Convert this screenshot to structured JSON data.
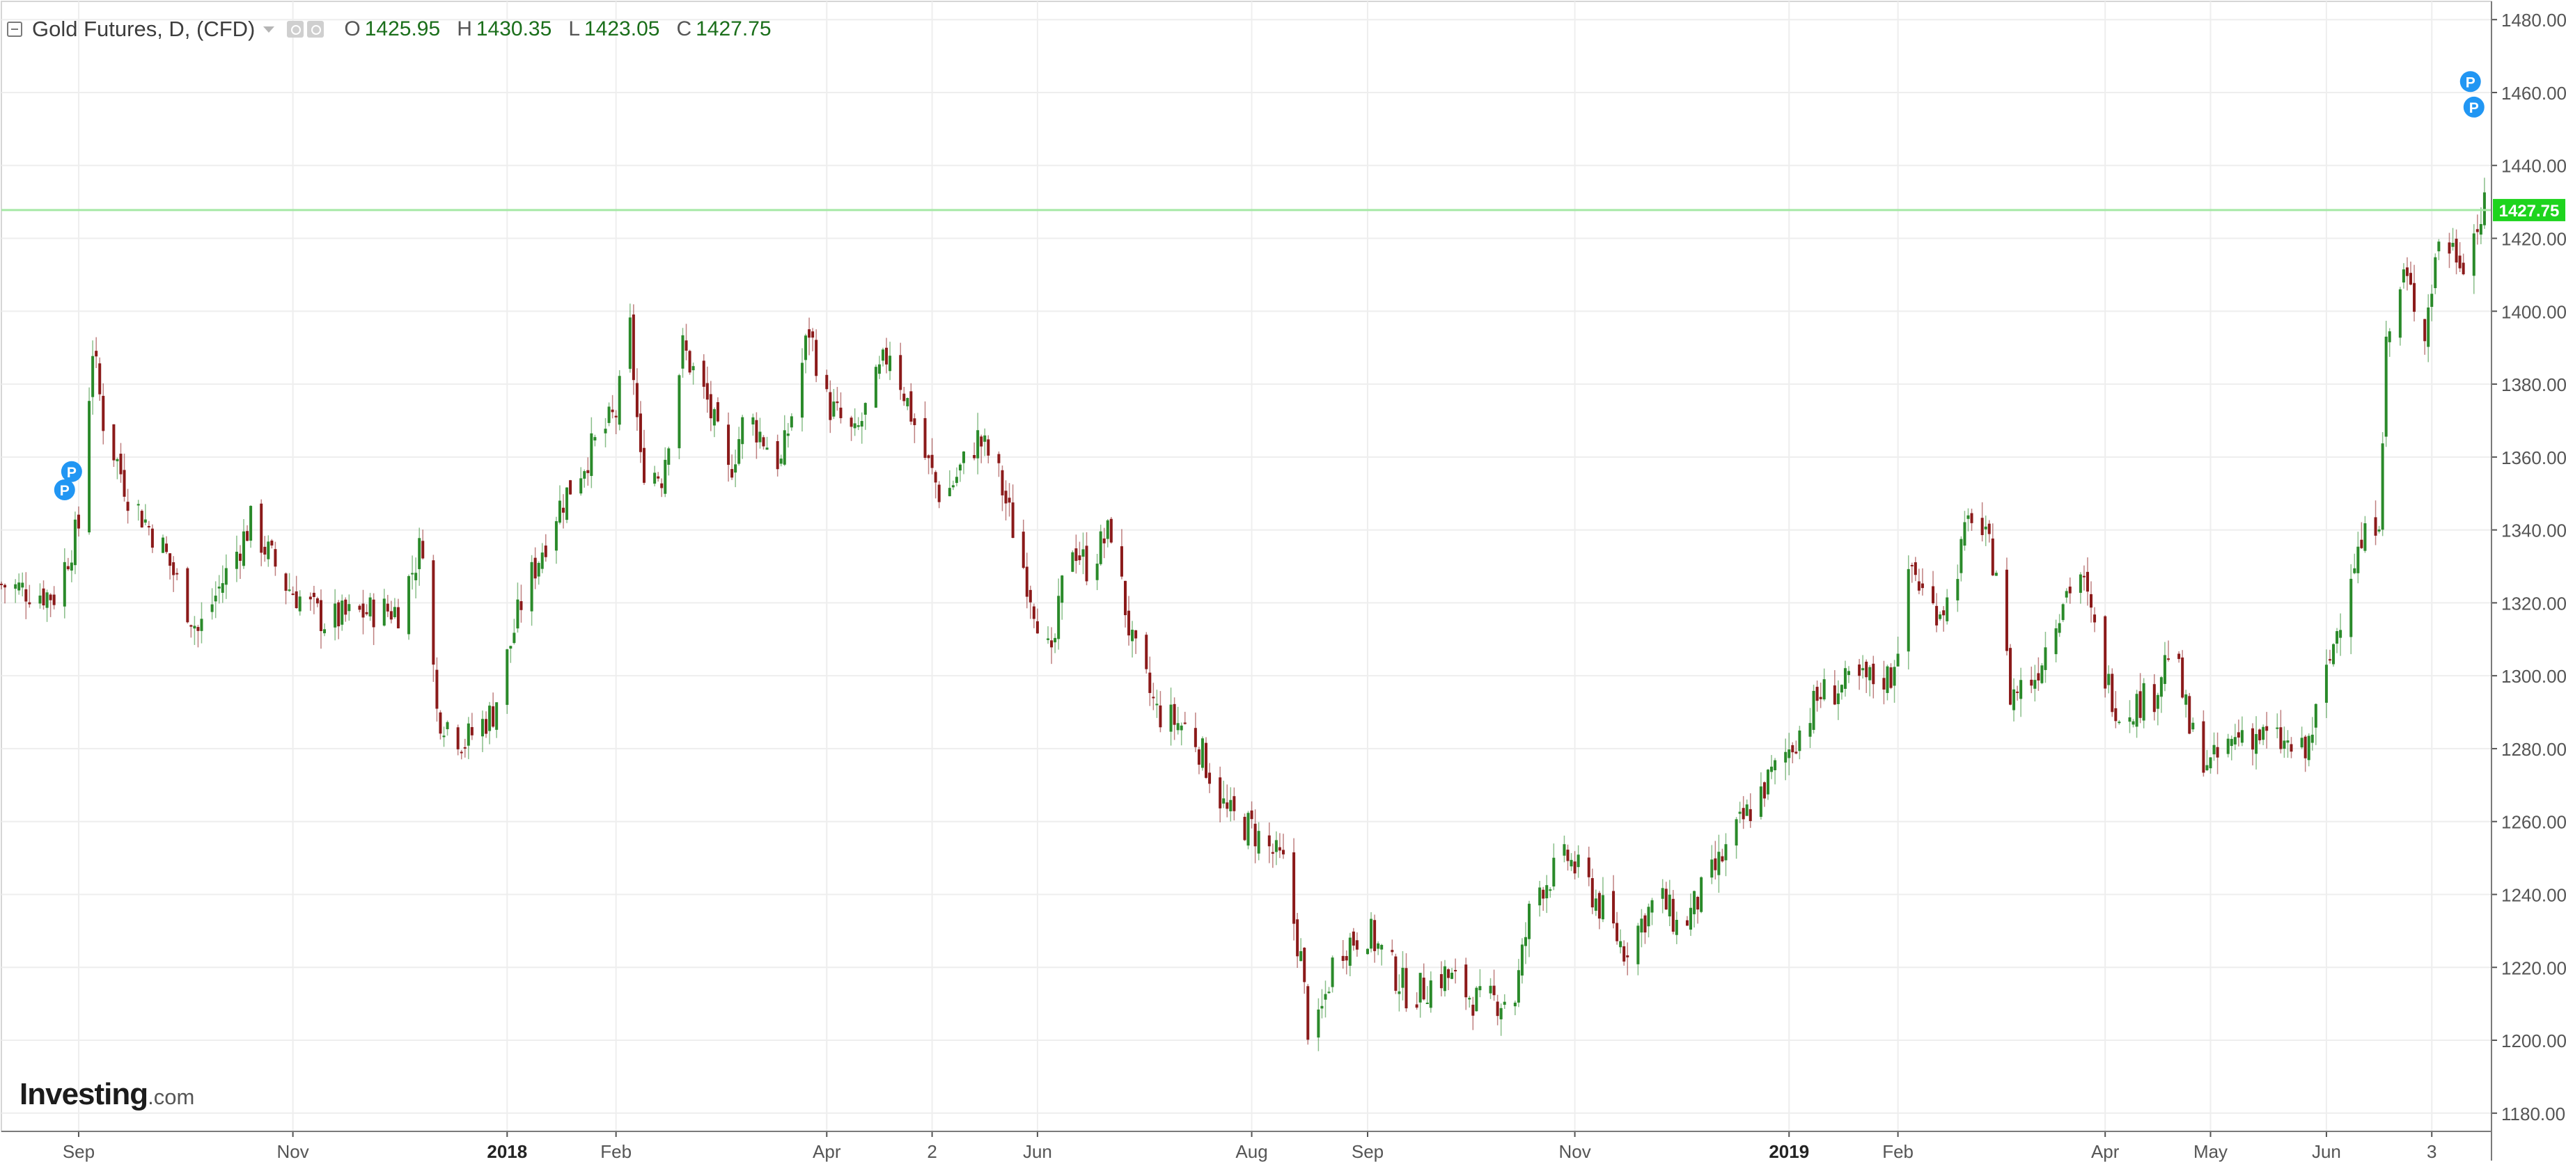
{
  "legend": {
    "title": "Gold Futures, D, (CFD)",
    "o_label": "O",
    "o_value": "1425.95",
    "h_label": "H",
    "h_value": "1430.35",
    "l_label": "L",
    "l_value": "1423.05",
    "c_label": "C",
    "c_value": "1427.75"
  },
  "brand": {
    "name": "Investing",
    "domain": ".com"
  },
  "price_tag": "1427.75",
  "markers": [
    "P",
    "P",
    "P",
    "P"
  ],
  "colors": {
    "up": "#2a8a2a",
    "down": "#8b1a1a",
    "price_line": "#a6e8a6",
    "price_tag": "#1ed41e",
    "marker": "#2196f3",
    "grid": "#eeeeee"
  },
  "chart_data": {
    "type": "candlestick",
    "grid": true,
    "yaxis_position": "right",
    "ylim": [
      1175,
      1485
    ],
    "yticks": [
      "1180.00",
      "1200.00",
      "1220.00",
      "1240.00",
      "1260.00",
      "1280.00",
      "1300.00",
      "1320.00",
      "1340.00",
      "1360.00",
      "1380.00",
      "1400.00",
      "1420.00",
      "1440.00",
      "1460.00",
      "1480.00"
    ],
    "xticks": [
      {
        "label": "Sep",
        "date": "2017-09-01"
      },
      {
        "label": "Nov",
        "date": "2017-11-01"
      },
      {
        "label": "2018",
        "date": "2018-01-01"
      },
      {
        "label": "Feb",
        "date": "2018-02-01"
      },
      {
        "label": "Apr",
        "date": "2018-04-02"
      },
      {
        "label": "2",
        "date": "2018-05-02"
      },
      {
        "label": "Jun",
        "date": "2018-06-01"
      },
      {
        "label": "Aug",
        "date": "2018-08-01"
      },
      {
        "label": "Sep",
        "date": "2018-09-03"
      },
      {
        "label": "Nov",
        "date": "2018-11-01"
      },
      {
        "label": "2019",
        "date": "2019-01-01"
      },
      {
        "label": "Feb",
        "date": "2019-02-01"
      },
      {
        "label": "Apr",
        "date": "2019-04-01"
      },
      {
        "label": "May",
        "date": "2019-05-01"
      },
      {
        "label": "Jun",
        "date": "2019-06-03"
      },
      {
        "label": "3",
        "date": "2019-07-03"
      }
    ],
    "xlim": [
      "2017-08-10",
      "2019-07-20"
    ],
    "last_price": 1427.75,
    "close_path": [
      [
        "2017-08-10",
        1325
      ],
      [
        "2017-08-25",
        1322
      ],
      [
        "2017-09-01",
        1341
      ],
      [
        "2017-09-05",
        1390
      ],
      [
        "2017-09-08",
        1370
      ],
      [
        "2017-09-15",
        1350
      ],
      [
        "2017-09-25",
        1335
      ],
      [
        "2017-10-05",
        1312
      ],
      [
        "2017-10-20",
        1342
      ],
      [
        "2017-10-30",
        1325
      ],
      [
        "2017-11-10",
        1315
      ],
      [
        "2017-11-25",
        1318
      ],
      [
        "2017-12-01",
        1318
      ],
      [
        "2017-12-08",
        1337
      ],
      [
        "2017-12-12",
        1290
      ],
      [
        "2017-12-20",
        1282
      ],
      [
        "2017-12-28",
        1290
      ],
      [
        "2018-01-05",
        1320
      ],
      [
        "2018-01-15",
        1345
      ],
      [
        "2018-01-25",
        1362
      ],
      [
        "2018-02-01",
        1372
      ],
      [
        "2018-02-05",
        1395
      ],
      [
        "2018-02-08",
        1358
      ],
      [
        "2018-02-14",
        1355
      ],
      [
        "2018-02-20",
        1390
      ],
      [
        "2018-02-27",
        1375
      ],
      [
        "2018-03-05",
        1355
      ],
      [
        "2018-03-10",
        1372
      ],
      [
        "2018-03-20",
        1358
      ],
      [
        "2018-03-28",
        1395
      ],
      [
        "2018-04-02",
        1375
      ],
      [
        "2018-04-10",
        1365
      ],
      [
        "2018-04-20",
        1390
      ],
      [
        "2018-04-30",
        1360
      ],
      [
        "2018-05-05",
        1348
      ],
      [
        "2018-05-15",
        1365
      ],
      [
        "2018-05-20",
        1358
      ],
      [
        "2018-05-28",
        1330
      ],
      [
        "2018-06-05",
        1303
      ],
      [
        "2018-06-10",
        1338
      ],
      [
        "2018-06-15",
        1330
      ],
      [
        "2018-06-22",
        1340
      ],
      [
        "2018-06-28",
        1308
      ],
      [
        "2018-07-05",
        1290
      ],
      [
        "2018-07-15",
        1285
      ],
      [
        "2018-07-25",
        1262
      ],
      [
        "2018-08-01",
        1258
      ],
      [
        "2018-08-10",
        1248
      ],
      [
        "2018-08-15",
        1222
      ],
      [
        "2018-08-18",
        1195
      ],
      [
        "2018-08-25",
        1225
      ],
      [
        "2018-09-03",
        1230
      ],
      [
        "2018-09-15",
        1212
      ],
      [
        "2018-09-25",
        1218
      ],
      [
        "2018-10-05",
        1210
      ],
      [
        "2018-10-15",
        1212
      ],
      [
        "2018-10-20",
        1240
      ],
      [
        "2018-10-30",
        1250
      ],
      [
        "2018-11-05",
        1242
      ],
      [
        "2018-11-15",
        1225
      ],
      [
        "2018-11-25",
        1240
      ],
      [
        "2018-12-01",
        1230
      ],
      [
        "2018-12-10",
        1245
      ],
      [
        "2018-12-20",
        1262
      ],
      [
        "2019-01-01",
        1280
      ],
      [
        "2019-01-10",
        1295
      ],
      [
        "2019-01-20",
        1298
      ],
      [
        "2019-01-30",
        1300
      ],
      [
        "2019-02-01",
        1310
      ],
      [
        "2019-02-05",
        1330
      ],
      [
        "2019-02-10",
        1318
      ],
      [
        "2019-02-15",
        1320
      ],
      [
        "2019-02-22",
        1345
      ],
      [
        "2019-03-01",
        1330
      ],
      [
        "2019-03-05",
        1295
      ],
      [
        "2019-03-12",
        1300
      ],
      [
        "2019-03-20",
        1322
      ],
      [
        "2019-03-25",
        1328
      ],
      [
        "2019-04-01",
        1300
      ],
      [
        "2019-04-05",
        1290
      ],
      [
        "2019-04-15",
        1295
      ],
      [
        "2019-04-20",
        1310
      ],
      [
        "2019-04-25",
        1285
      ],
      [
        "2019-05-01",
        1275
      ],
      [
        "2019-05-10",
        1285
      ],
      [
        "2019-05-20",
        1282
      ],
      [
        "2019-05-28",
        1278
      ],
      [
        "2019-06-03",
        1300
      ],
      [
        "2019-06-10",
        1330
      ],
      [
        "2019-06-18",
        1345
      ],
      [
        "2019-06-20",
        1390
      ],
      [
        "2019-06-25",
        1410
      ],
      [
        "2019-07-01",
        1395
      ],
      [
        "2019-07-05",
        1420
      ],
      [
        "2019-07-12",
        1415
      ],
      [
        "2019-07-18",
        1427.75
      ]
    ]
  }
}
